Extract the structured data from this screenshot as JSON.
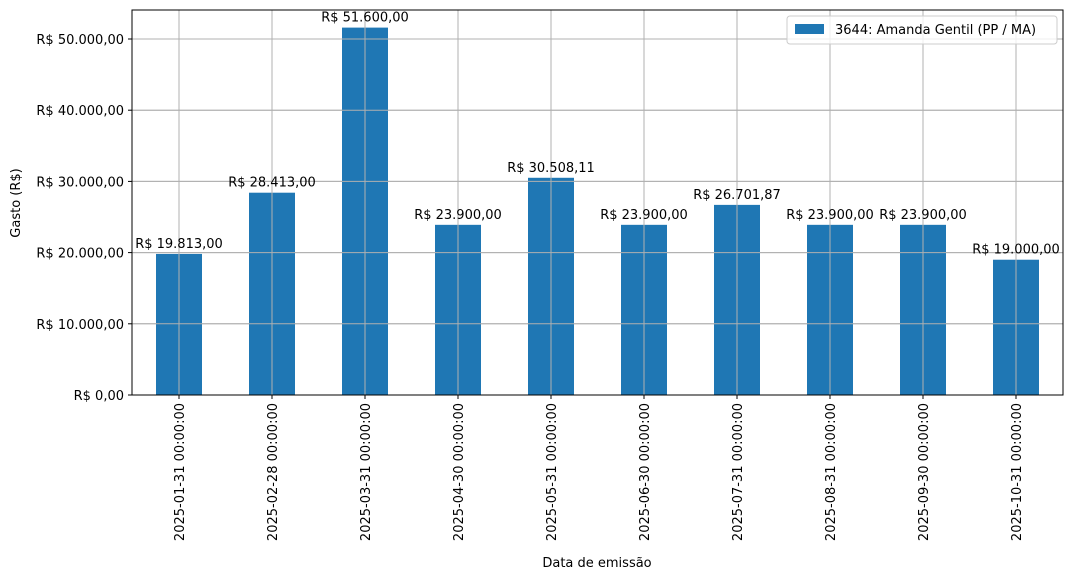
{
  "chart_data": {
    "type": "bar",
    "title": "",
    "xlabel": "Data de emissão",
    "ylabel": "Gasto (R$)",
    "ylim": [
      0,
      54000
    ],
    "grid": true,
    "legend_position": "upper right",
    "bar_color": "#1f77b4",
    "categories": [
      "2025-01-31 00:00:00",
      "2025-02-28 00:00:00",
      "2025-03-31 00:00:00",
      "2025-04-30 00:00:00",
      "2025-05-31 00:00:00",
      "2025-06-30 00:00:00",
      "2025-07-31 00:00:00",
      "2025-08-31 00:00:00",
      "2025-09-30 00:00:00",
      "2025-10-31 00:00:00"
    ],
    "series": [
      {
        "name": "3644: Amanda Gentil (PP / MA)",
        "values": [
          19813.0,
          28413.0,
          51600.0,
          23900.0,
          30508.11,
          23900.0,
          26701.87,
          23900.0,
          23900.0,
          19000.0
        ]
      }
    ],
    "data_labels": [
      "R$ 19.813,00",
      "R$ 28.413,00",
      "R$ 51.600,00",
      "R$ 23.900,00",
      "R$ 30.508,11",
      "R$ 23.900,00",
      "R$ 26.701,87",
      "R$ 23.900,00",
      "R$ 23.900,00",
      "R$ 19.000,00"
    ],
    "yticks": [
      0,
      10000,
      20000,
      30000,
      40000,
      50000
    ],
    "ytick_labels": [
      "R$ 0,00",
      "R$ 10.000,00",
      "R$ 20.000,00",
      "R$ 30.000,00",
      "R$ 40.000,00",
      "R$ 50.000,00"
    ]
  }
}
